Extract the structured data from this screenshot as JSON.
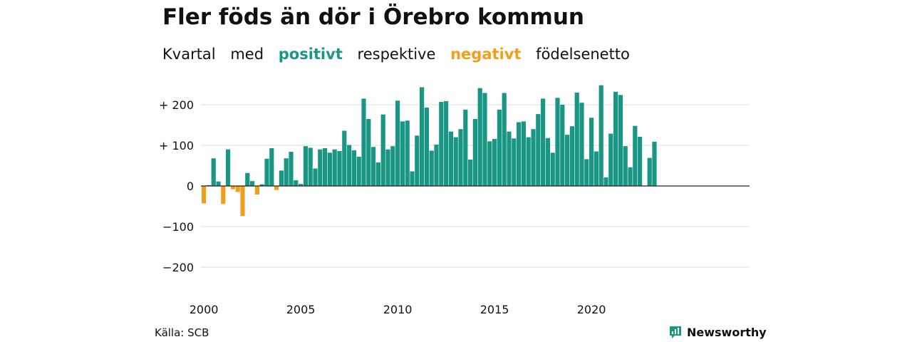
{
  "title": "Fler föds än dör i Örebro kommun",
  "subtitle": {
    "word1": "Kvartal",
    "word2": "med",
    "positive": "positivt",
    "word3": "respektive",
    "negative": "negativt",
    "word4": "födelsenetto"
  },
  "colors": {
    "positive": "#1a9685",
    "negative": "#f29e1d",
    "grid": "#dddddd",
    "zero_line": "#222222"
  },
  "source": "Källa: SCB",
  "brand": {
    "name": "Newsworthy",
    "icon": "newsworthy-logo-icon"
  },
  "chart_data": {
    "type": "bar",
    "title": "Fler föds än dör i Örebro kommun",
    "subtitle": "Kvartal med positivt respektive negativt födelsenetto",
    "x_start_year": 2000,
    "x_step": "quarter",
    "values": [
      -43,
      2,
      68,
      11,
      -44,
      90,
      -8,
      -15,
      -74,
      32,
      12,
      -21,
      4,
      67,
      93,
      -10,
      38,
      68,
      84,
      14,
      5,
      98,
      94,
      43,
      90,
      93,
      82,
      90,
      86,
      136,
      101,
      88,
      72,
      215,
      165,
      96,
      58,
      176,
      90,
      98,
      210,
      159,
      161,
      36,
      124,
      243,
      193,
      87,
      102,
      207,
      209,
      134,
      120,
      140,
      188,
      65,
      165,
      241,
      229,
      110,
      116,
      188,
      229,
      134,
      117,
      157,
      159,
      120,
      140,
      177,
      215,
      118,
      82,
      217,
      200,
      126,
      147,
      230,
      205,
      66,
      168,
      85,
      248,
      21,
      129,
      232,
      224,
      98,
      46,
      148,
      121,
      0,
      69,
      109
    ],
    "xticks": [
      "2000",
      "2005",
      "2010",
      "2015",
      "2020"
    ],
    "yticks": [
      "+ 200",
      "+ 100",
      "0",
      "−100",
      "−200"
    ],
    "ytick_values": [
      200,
      100,
      0,
      -100,
      -200
    ],
    "ylim": [
      -220,
      260
    ],
    "grid": true
  }
}
